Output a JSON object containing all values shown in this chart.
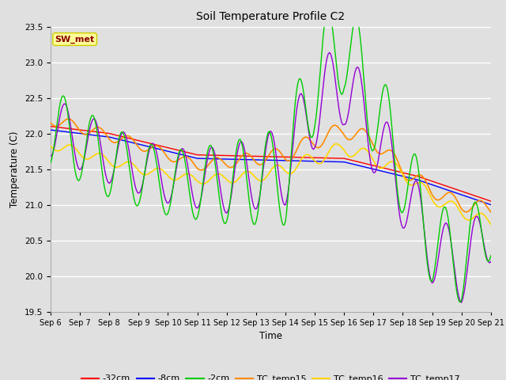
{
  "title": "Soil Temperature Profile C2",
  "xlabel": "Time",
  "ylabel": "Temperature (C)",
  "ylim": [
    19.5,
    23.5
  ],
  "xlim": [
    0,
    360
  ],
  "annotation": "SW_met",
  "annotation_color": "#8B0000",
  "annotation_bg": "#FFFF99",
  "annotation_edge": "#CCCC00",
  "bg_color": "#E0E0E0",
  "grid_color": "white",
  "x_tick_labels": [
    "Sep 6",
    "Sep 7",
    "Sep 8",
    "Sep 9",
    "Sep 10",
    "Sep 11",
    "Sep 12",
    "Sep 13",
    "Sep 14",
    "Sep 15",
    "Sep 16",
    "Sep 17",
    "Sep 18",
    "Sep 19",
    "Sep 20",
    "Sep 21"
  ],
  "x_tick_positions": [
    0,
    24,
    48,
    72,
    96,
    120,
    144,
    168,
    192,
    216,
    240,
    264,
    288,
    312,
    336,
    360
  ],
  "yticks": [
    19.5,
    20.0,
    20.5,
    21.0,
    21.5,
    22.0,
    22.5,
    23.0,
    23.5
  ],
  "colors": {
    "m32cm": "#FF0000",
    "m8cm": "#0000FF",
    "m2cm": "#00CC00",
    "TC_temp15": "#FF8C00",
    "TC_temp16": "#FFD700",
    "TC_temp17": "#9400D3"
  },
  "legend_labels": [
    "-32cm",
    "-8cm",
    "-2cm",
    "TC_temp15",
    "TC_temp16",
    "TC_temp17"
  ]
}
